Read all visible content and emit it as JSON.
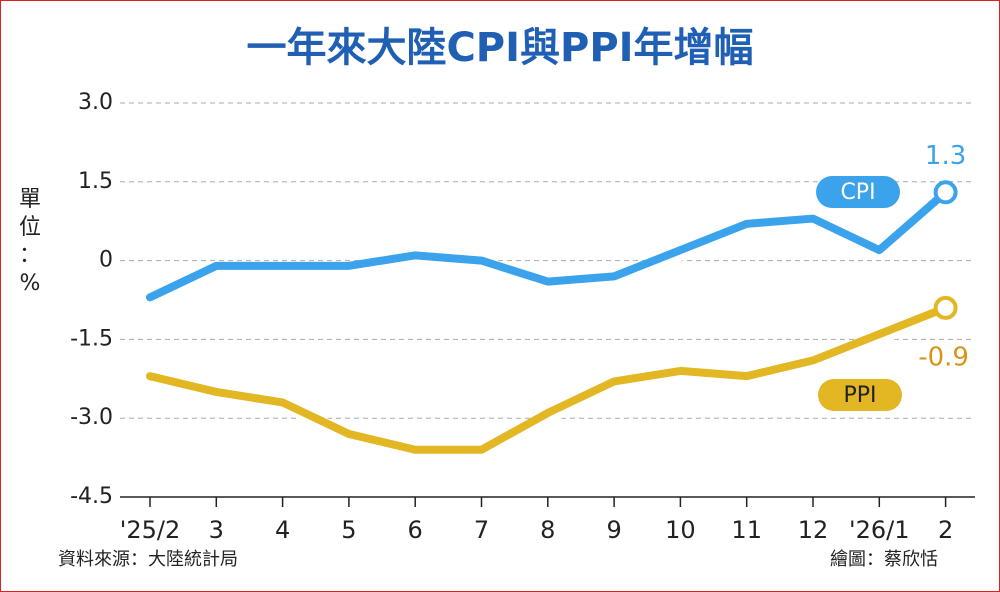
{
  "chart_data": {
    "type": "line",
    "title": "一年來大陸CPI與PPI年增幅",
    "y_label": "單位：%",
    "source": "資料來源：大陸統計局",
    "credit": "繪圖：蔡欣恬",
    "categories": [
      "'25/2",
      "3",
      "4",
      "5",
      "6",
      "7",
      "8",
      "9",
      "10",
      "11",
      "12",
      "'26/1",
      "2"
    ],
    "series": [
      {
        "name": "CPI",
        "color": "#3ba3ec",
        "values": [
          -0.7,
          -0.1,
          -0.1,
          -0.1,
          0.1,
          0.0,
          -0.4,
          -0.3,
          0.2,
          0.7,
          0.8,
          0.2,
          1.3
        ]
      },
      {
        "name": "PPI",
        "color": "#e3b624",
        "values": [
          -2.2,
          -2.5,
          -2.7,
          -3.3,
          -3.6,
          -3.6,
          -2.9,
          -2.3,
          -2.1,
          -2.2,
          -1.9,
          -1.4,
          -0.9
        ]
      }
    ],
    "ylim": [
      -4.5,
      3.0
    ],
    "yticks": [
      {
        "value": 3.0,
        "label": "3.0"
      },
      1.5,
      0,
      -1.5,
      {
        "value": -3.0,
        "label": "-3.0"
      },
      -4.5
    ],
    "grid": true
  }
}
